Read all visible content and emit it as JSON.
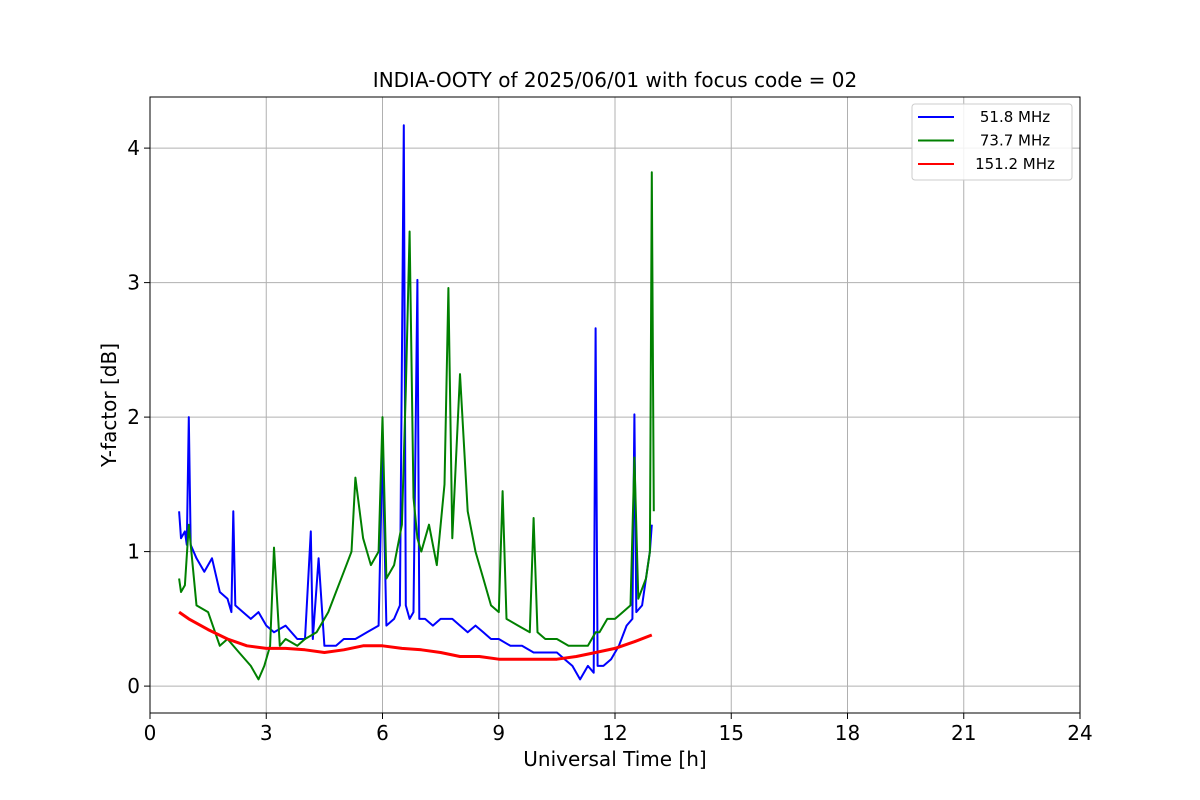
{
  "chart_data": {
    "type": "line",
    "title": "INDIA-OOTY of 2025/06/01 with focus code = 02",
    "xlabel": "Universal Time [h]",
    "ylabel": "Y-factor [dB]",
    "xlim": [
      0,
      24
    ],
    "ylim": [
      -0.2,
      4.38
    ],
    "xticks": [
      0,
      3,
      6,
      9,
      12,
      15,
      18,
      21,
      24
    ],
    "yticks": [
      0,
      1,
      2,
      3,
      4
    ],
    "grid": true,
    "legend_position": "top-right",
    "series": [
      {
        "name": "51.8 MHz",
        "color": "#0000ff",
        "x": [
          0.75,
          0.8,
          0.9,
          0.95,
          1.0,
          1.05,
          1.2,
          1.4,
          1.6,
          1.8,
          2.0,
          2.1,
          2.15,
          2.2,
          2.4,
          2.6,
          2.8,
          3.0,
          3.2,
          3.5,
          3.8,
          4.0,
          4.15,
          4.2,
          4.35,
          4.5,
          4.8,
          5.0,
          5.3,
          5.6,
          5.9,
          6.0,
          6.1,
          6.3,
          6.45,
          6.55,
          6.6,
          6.7,
          6.8,
          6.9,
          6.95,
          7.1,
          7.3,
          7.5,
          7.8,
          8.0,
          8.2,
          8.4,
          8.6,
          8.8,
          9.0,
          9.3,
          9.6,
          9.9,
          10.2,
          10.5,
          10.7,
          10.9,
          11.1,
          11.3,
          11.45,
          11.5,
          11.55,
          11.7,
          11.9,
          12.1,
          12.3,
          12.45,
          12.5,
          12.55,
          12.7,
          12.85,
          12.9,
          12.95
        ],
        "y": [
          1.3,
          1.1,
          1.15,
          1.05,
          2.0,
          1.05,
          0.95,
          0.85,
          0.95,
          0.7,
          0.65,
          0.55,
          1.3,
          0.6,
          0.55,
          0.5,
          0.55,
          0.45,
          0.4,
          0.45,
          0.35,
          0.35,
          1.15,
          0.35,
          0.95,
          0.3,
          0.3,
          0.35,
          0.35,
          0.4,
          0.45,
          1.78,
          0.45,
          0.5,
          0.6,
          4.17,
          0.6,
          0.5,
          0.55,
          3.02,
          0.5,
          0.5,
          0.45,
          0.5,
          0.5,
          0.45,
          0.4,
          0.45,
          0.4,
          0.35,
          0.35,
          0.3,
          0.3,
          0.25,
          0.25,
          0.25,
          0.2,
          0.15,
          0.05,
          0.15,
          0.1,
          2.66,
          0.15,
          0.15,
          0.2,
          0.3,
          0.45,
          0.5,
          2.02,
          0.55,
          0.6,
          0.9,
          1.0,
          1.2
        ]
      },
      {
        "name": "73.7 MHz",
        "color": "#008000",
        "x": [
          0.75,
          0.8,
          0.9,
          1.0,
          1.2,
          1.5,
          1.8,
          2.0,
          2.3,
          2.6,
          2.8,
          2.95,
          3.1,
          3.2,
          3.35,
          3.5,
          3.8,
          4.0,
          4.3,
          4.6,
          4.8,
          5.0,
          5.2,
          5.3,
          5.5,
          5.7,
          5.9,
          6.0,
          6.1,
          6.3,
          6.5,
          6.6,
          6.7,
          6.8,
          6.9,
          7.0,
          7.2,
          7.4,
          7.6,
          7.7,
          7.8,
          8.0,
          8.2,
          8.4,
          8.6,
          8.8,
          9.0,
          9.1,
          9.2,
          9.5,
          9.8,
          9.9,
          10.0,
          10.2,
          10.5,
          10.8,
          11.0,
          11.3,
          11.5,
          11.6,
          11.8,
          12.0,
          12.2,
          12.4,
          12.5,
          12.6,
          12.8,
          12.9,
          12.95,
          13.0
        ],
        "y": [
          0.8,
          0.7,
          0.75,
          1.2,
          0.6,
          0.55,
          0.3,
          0.35,
          0.25,
          0.15,
          0.05,
          0.15,
          0.3,
          1.03,
          0.3,
          0.35,
          0.3,
          0.35,
          0.4,
          0.55,
          0.7,
          0.85,
          1.0,
          1.55,
          1.1,
          0.9,
          1.0,
          2.0,
          0.8,
          0.9,
          1.2,
          2.2,
          3.38,
          1.4,
          1.1,
          1.0,
          1.2,
          0.9,
          1.5,
          2.96,
          1.1,
          2.32,
          1.3,
          1.0,
          0.8,
          0.6,
          0.55,
          1.45,
          0.5,
          0.45,
          0.4,
          1.25,
          0.4,
          0.35,
          0.35,
          0.3,
          0.3,
          0.3,
          0.4,
          0.4,
          0.5,
          0.5,
          0.55,
          0.6,
          1.7,
          0.65,
          0.8,
          1.0,
          3.82,
          1.3
        ]
      },
      {
        "name": "151.2 MHz",
        "color": "#ff0000",
        "x": [
          0.75,
          1.0,
          1.5,
          2.0,
          2.5,
          3.0,
          3.5,
          4.0,
          4.5,
          5.0,
          5.5,
          6.0,
          6.5,
          7.0,
          7.5,
          8.0,
          8.5,
          9.0,
          9.5,
          10.0,
          10.5,
          11.0,
          11.5,
          12.0,
          12.5,
          12.95
        ],
        "y": [
          0.55,
          0.5,
          0.42,
          0.35,
          0.3,
          0.28,
          0.28,
          0.27,
          0.25,
          0.27,
          0.3,
          0.3,
          0.28,
          0.27,
          0.25,
          0.22,
          0.22,
          0.2,
          0.2,
          0.2,
          0.2,
          0.22,
          0.25,
          0.28,
          0.33,
          0.38
        ]
      }
    ]
  }
}
